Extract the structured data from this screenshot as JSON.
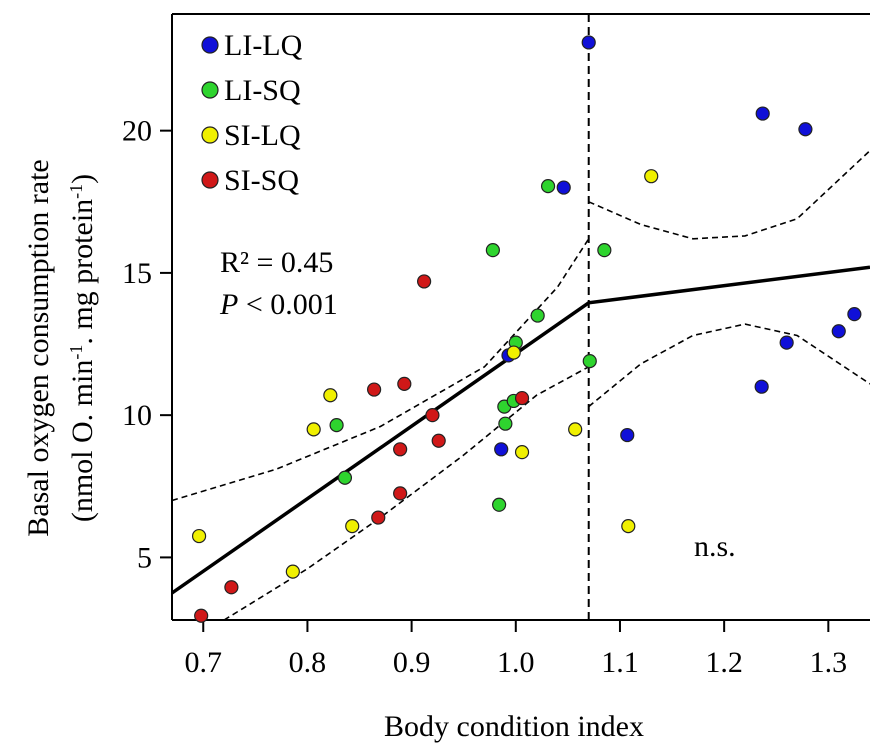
{
  "chart_data": {
    "type": "scatter",
    "xlabel": "Body condition index",
    "ylabel_line1": "Basal oxygen consumption rate",
    "ylabel_line2": "(nmol O. min-1. mg protein-1)",
    "xlim": [
      0.67,
      1.34
    ],
    "ylim": [
      2.8,
      24.1
    ],
    "x_ticks": [
      0.7,
      0.8,
      0.9,
      1.0,
      1.1,
      1.2,
      1.3
    ],
    "x_tick_labels": [
      "0.7",
      "0.8",
      "0.9",
      "1.0",
      "1.1",
      "1.2",
      "1.3"
    ],
    "y_ticks": [
      5,
      10,
      15,
      20
    ],
    "y_tick_labels": [
      "5",
      "10",
      "15",
      "20"
    ],
    "breakpoint_x": 1.07,
    "stats": {
      "r2": "R² = 0.45",
      "p_italic": "P",
      "p_rest": " < 0.001"
    },
    "ns_label": "n.s.",
    "legend_placement": "top-left",
    "series": [
      {
        "name": "LI-LQ",
        "color": "#1010d8",
        "points": [
          [
            1.07,
            23.1
          ],
          [
            1.237,
            20.6
          ],
          [
            1.278,
            20.05
          ],
          [
            1.046,
            18.0
          ],
          [
            0.993,
            12.1
          ],
          [
            1.26,
            12.55
          ],
          [
            1.31,
            12.95
          ],
          [
            1.325,
            13.55
          ],
          [
            1.236,
            11.0
          ],
          [
            1.107,
            9.3
          ],
          [
            0.986,
            8.8
          ]
        ]
      },
      {
        "name": "LI-SQ",
        "color": "#2ed42e",
        "points": [
          [
            1.031,
            18.05
          ],
          [
            0.978,
            15.8
          ],
          [
            1.085,
            15.8
          ],
          [
            1.021,
            13.5
          ],
          [
            1.0,
            12.55
          ],
          [
            1.071,
            11.9
          ],
          [
            0.989,
            10.3
          ],
          [
            0.998,
            10.5
          ],
          [
            0.99,
            9.7
          ],
          [
            0.828,
            9.65
          ],
          [
            0.836,
            7.8
          ],
          [
            0.984,
            6.85
          ]
        ]
      },
      {
        "name": "SI-LQ",
        "color": "#f0f000",
        "points": [
          [
            1.13,
            18.4
          ],
          [
            0.822,
            10.7
          ],
          [
            0.806,
            9.5
          ],
          [
            0.998,
            12.2
          ],
          [
            1.057,
            9.5
          ],
          [
            1.006,
            8.7
          ],
          [
            0.843,
            6.1
          ],
          [
            1.108,
            6.1
          ],
          [
            0.786,
            4.5
          ],
          [
            0.696,
            5.75
          ]
        ]
      },
      {
        "name": "SI-SQ",
        "color": "#d01818",
        "points": [
          [
            0.912,
            14.7
          ],
          [
            0.864,
            10.9
          ],
          [
            0.893,
            11.1
          ],
          [
            0.92,
            10.0
          ],
          [
            1.006,
            10.6
          ],
          [
            0.926,
            9.1
          ],
          [
            0.889,
            8.8
          ],
          [
            0.889,
            7.25
          ],
          [
            0.868,
            6.4
          ],
          [
            0.727,
            3.95
          ],
          [
            0.698,
            2.95
          ]
        ]
      }
    ],
    "fit_line": [
      [
        0.67,
        3.75
      ],
      [
        1.07,
        13.95
      ],
      [
        1.34,
        15.2
      ]
    ],
    "ci_upper_left": [
      [
        0.67,
        7.0
      ],
      [
        0.77,
        8.1
      ],
      [
        0.87,
        9.6
      ],
      [
        0.97,
        11.7
      ],
      [
        1.04,
        14.5
      ],
      [
        1.07,
        16.2
      ]
    ],
    "ci_lower_left": [
      [
        0.72,
        2.8
      ],
      [
        0.8,
        4.6
      ],
      [
        0.87,
        6.4
      ],
      [
        0.95,
        8.6
      ],
      [
        1.02,
        10.7
      ],
      [
        1.07,
        11.7
      ]
    ],
    "ci_upper_right": [
      [
        1.07,
        17.5
      ],
      [
        1.12,
        16.7
      ],
      [
        1.17,
        16.2
      ],
      [
        1.22,
        16.3
      ],
      [
        1.27,
        16.9
      ],
      [
        1.34,
        19.3
      ]
    ],
    "ci_lower_right": [
      [
        1.07,
        10.3
      ],
      [
        1.12,
        11.8
      ],
      [
        1.17,
        12.8
      ],
      [
        1.22,
        13.2
      ],
      [
        1.27,
        12.8
      ],
      [
        1.34,
        11.1
      ]
    ]
  }
}
